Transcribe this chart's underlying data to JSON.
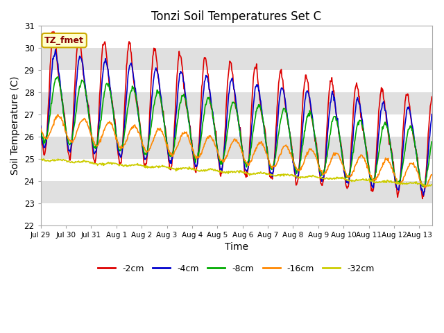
{
  "title": "Tonzi Soil Temperatures Set C",
  "xlabel": "Time",
  "ylabel": "Soil Temperature (C)",
  "ylim": [
    22.0,
    31.0
  ],
  "yticks": [
    22.0,
    23.0,
    24.0,
    25.0,
    26.0,
    27.0,
    28.0,
    29.0,
    30.0,
    31.0
  ],
  "plot_bg": "#d8d8d8",
  "fig_bg": "#ffffff",
  "stripe_colors": [
    "#ffffff",
    "#e0e0e0"
  ],
  "annotation_label": "TZ_fmet",
  "annotation_bg": "#ffffcc",
  "annotation_border": "#ccaa00",
  "annotation_text_color": "#880000",
  "series": {
    "-2cm": {
      "color": "#dd0000",
      "lw": 1.2
    },
    "-4cm": {
      "color": "#0000cc",
      "lw": 1.2
    },
    "-8cm": {
      "color": "#00aa00",
      "lw": 1.2
    },
    "-16cm": {
      "color": "#ff8800",
      "lw": 1.2
    },
    "-32cm": {
      "color": "#cccc00",
      "lw": 1.2
    }
  },
  "x_tick_labels": [
    "Jul 29",
    "Jul 30",
    "Jul 31",
    "Aug 1",
    "Aug 2",
    "Aug 3",
    "Aug 4",
    "Aug 5",
    "Aug 6",
    "Aug 7",
    "Aug 8",
    "Aug 9",
    "Aug 10",
    "Aug 11",
    "Aug 12",
    "Aug 13"
  ],
  "legend_labels": [
    "-2cm",
    "-4cm",
    "-8cm",
    "-16cm",
    "-32cm"
  ],
  "legend_colors": [
    "#dd0000",
    "#0000cc",
    "#00aa00",
    "#ff8800",
    "#cccc00"
  ]
}
